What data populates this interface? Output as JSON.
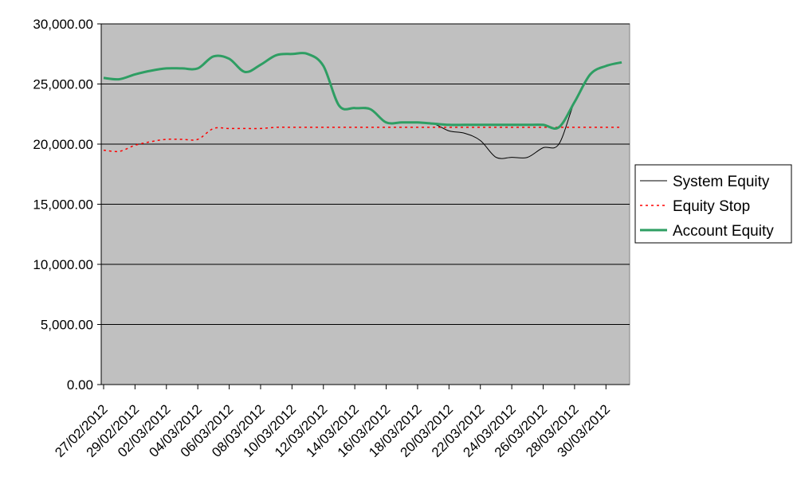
{
  "chart_data": {
    "type": "line",
    "title": "",
    "xlabel": "",
    "ylabel": "",
    "ylim": [
      0,
      30000
    ],
    "y_ticks": [
      "0.00",
      "5,000.00",
      "10,000.00",
      "15,000.00",
      "20,000.00",
      "25,000.00",
      "30,000.00"
    ],
    "y_tick_values": [
      0,
      5000,
      10000,
      15000,
      20000,
      25000,
      30000
    ],
    "grid": "horizontal",
    "legend_position": "right",
    "x_dates": [
      "27/02/2012",
      "28/02/2012",
      "29/02/2012",
      "01/03/2012",
      "02/03/2012",
      "03/03/2012",
      "04/03/2012",
      "05/03/2012",
      "06/03/2012",
      "07/03/2012",
      "08/03/2012",
      "09/03/2012",
      "10/03/2012",
      "11/03/2012",
      "12/03/2012",
      "13/03/2012",
      "14/03/2012",
      "15/03/2012",
      "16/03/2012",
      "17/03/2012",
      "18/03/2012",
      "19/03/2012",
      "20/03/2012",
      "21/03/2012",
      "22/03/2012",
      "23/03/2012",
      "24/03/2012",
      "25/03/2012",
      "26/03/2012",
      "27/03/2012",
      "28/03/2012",
      "29/03/2012",
      "30/03/2012",
      "31/03/2012"
    ],
    "x_tick_labels": [
      "27/02/2012",
      "29/02/2012",
      "02/03/2012",
      "04/03/2012",
      "06/03/2012",
      "08/03/2012",
      "10/03/2012",
      "12/03/2012",
      "14/03/2012",
      "16/03/2012",
      "18/03/2012",
      "20/03/2012",
      "22/03/2012",
      "24/03/2012",
      "26/03/2012",
      "28/03/2012",
      "30/03/2012"
    ],
    "series": [
      {
        "name": "System Equity",
        "color": "#000000",
        "style": "solid-thin",
        "values": [
          25500,
          25400,
          25800,
          26100,
          26300,
          26300,
          26300,
          27300,
          27100,
          26000,
          26600,
          27400,
          27500,
          27500,
          26500,
          23200,
          23000,
          22900,
          21800,
          21800,
          21800,
          21700,
          21100,
          20900,
          20300,
          18900,
          18900,
          18900,
          19700,
          20000,
          23500,
          25800,
          26500,
          26800
        ]
      },
      {
        "name": "Equity Stop",
        "color": "#ff0000",
        "style": "dotted",
        "values": [
          19500,
          19400,
          19900,
          20200,
          20400,
          20400,
          20400,
          21300,
          21300,
          21300,
          21300,
          21400,
          21400,
          21400,
          21400,
          21400,
          21400,
          21400,
          21400,
          21400,
          21400,
          21400,
          21400,
          21400,
          21400,
          21400,
          21400,
          21400,
          21400,
          21400,
          21400,
          21400,
          21400,
          21400
        ]
      },
      {
        "name": "Account Equity",
        "color": "#2e9e63",
        "style": "solid-thick",
        "values": [
          25500,
          25400,
          25800,
          26100,
          26300,
          26300,
          26300,
          27300,
          27100,
          26000,
          26600,
          27400,
          27500,
          27500,
          26500,
          23200,
          23000,
          22900,
          21800,
          21800,
          21800,
          21700,
          21600,
          21600,
          21600,
          21600,
          21600,
          21600,
          21600,
          21400,
          23500,
          25800,
          26500,
          26800
        ]
      }
    ]
  }
}
